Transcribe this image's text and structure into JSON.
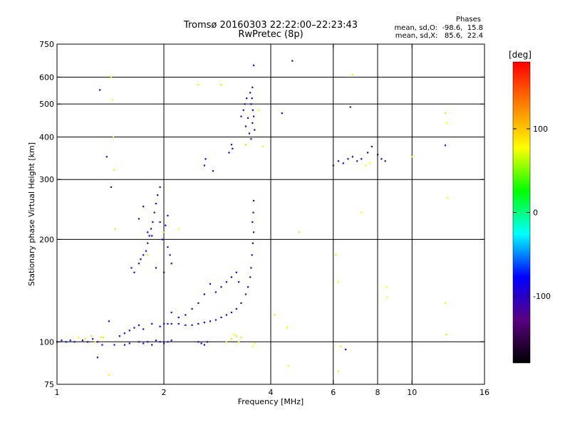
{
  "chart_data": {
    "type": "scatter",
    "title": "Tromsø 20160303 22:22:00–22:23:43",
    "subtitle": "RwPretec (8p)",
    "xlabel": "Frequency [MHz]",
    "ylabel": "Stationary phase Virtual Height [km]",
    "x_scale": "log",
    "y_scale": "log",
    "xlim": [
      1,
      16
    ],
    "ylim": [
      75,
      750
    ],
    "x_ticks": [
      1,
      2,
      4,
      6,
      8,
      10,
      16
    ],
    "y_ticks": [
      75,
      100,
      200,
      300,
      400,
      500,
      600,
      750
    ],
    "x_gridlines": [
      2,
      4,
      6,
      8,
      10
    ],
    "y_gridlines": [
      100,
      200,
      300,
      400,
      500,
      600
    ],
    "grid": true,
    "phase_stats": {
      "heading": "Phases",
      "line_o": "mean, sd,O:  -98.6,  15.8",
      "line_x": "mean, sd,X:   85.6,  22.4"
    },
    "colorbar": {
      "label": "[deg]",
      "range": [
        -180,
        180
      ],
      "ticks": [
        100,
        0,
        -100
      ],
      "tick_labels": [
        "100",
        "0",
        "-100"
      ],
      "colors": [
        "#000000",
        "#5a0080",
        "#0000ff",
        "#00ffff",
        "#00ff00",
        "#ffff00",
        "#ff8000",
        "#ff0000"
      ]
    },
    "series": [
      {
        "mode": "O",
        "points": [
          [
            1.0,
            100,
            -95
          ],
          [
            1.03,
            101,
            -100
          ],
          [
            1.06,
            100,
            -90
          ],
          [
            1.09,
            101,
            -85
          ],
          [
            1.12,
            100,
            -100
          ],
          [
            1.18,
            101,
            -95
          ],
          [
            1.22,
            100,
            -100
          ],
          [
            1.26,
            102,
            -90
          ],
          [
            1.3,
            100,
            -100
          ],
          [
            1.34,
            98,
            -100
          ],
          [
            1.45,
            98,
            -100
          ],
          [
            1.55,
            98,
            -95
          ],
          [
            1.6,
            99,
            -100
          ],
          [
            1.7,
            100,
            -95
          ],
          [
            1.75,
            99,
            -100
          ],
          [
            1.8,
            100,
            -90
          ],
          [
            1.85,
            98,
            -100
          ],
          [
            1.9,
            101,
            -95
          ],
          [
            1.95,
            100,
            -100
          ],
          [
            2.0,
            99,
            -95
          ],
          [
            2.05,
            100,
            -100
          ],
          [
            2.1,
            101,
            -90
          ],
          [
            2.5,
            100,
            -95
          ],
          [
            2.55,
            99,
            -100
          ],
          [
            2.6,
            98,
            -95
          ],
          [
            2.65,
            100,
            -100
          ],
          [
            1.5,
            104,
            -95
          ],
          [
            1.55,
            106,
            -100
          ],
          [
            1.6,
            108,
            -90
          ],
          [
            1.65,
            110,
            -95
          ],
          [
            1.7,
            112,
            -100
          ],
          [
            1.75,
            109,
            -100
          ],
          [
            1.85,
            113,
            -95
          ],
          [
            1.95,
            111,
            -100
          ],
          [
            2.0,
            113,
            -95
          ],
          [
            2.05,
            113,
            -90
          ],
          [
            2.1,
            113,
            -100
          ],
          [
            2.2,
            113,
            -95
          ],
          [
            2.3,
            112,
            -100
          ],
          [
            2.4,
            112,
            -95
          ],
          [
            2.5,
            113,
            -100
          ],
          [
            2.6,
            114,
            -95
          ],
          [
            2.7,
            115,
            -90
          ],
          [
            2.8,
            116,
            -100
          ],
          [
            2.9,
            118,
            -95
          ],
          [
            3.0,
            120,
            -100
          ],
          [
            3.1,
            122,
            -95
          ],
          [
            3.2,
            125,
            -90
          ],
          [
            3.3,
            130,
            -95
          ],
          [
            3.4,
            138,
            -100
          ],
          [
            3.45,
            145,
            -95
          ],
          [
            3.5,
            155,
            -90
          ],
          [
            3.52,
            165,
            -100
          ],
          [
            3.54,
            180,
            -95
          ],
          [
            3.56,
            195,
            -100
          ],
          [
            3.58,
            210,
            -95
          ],
          [
            3.55,
            225,
            -90
          ],
          [
            3.57,
            240,
            -100
          ],
          [
            3.58,
            260,
            -95
          ],
          [
            3.0,
            150,
            -100
          ],
          [
            3.1,
            155,
            -95
          ],
          [
            3.2,
            160,
            -90
          ],
          [
            3.25,
            150,
            -100
          ],
          [
            2.9,
            145,
            -95
          ],
          [
            2.8,
            140,
            -100
          ],
          [
            2.7,
            148,
            -95
          ],
          [
            2.6,
            138,
            -90
          ],
          [
            2.5,
            130,
            -95
          ],
          [
            2.4,
            125,
            -100
          ],
          [
            2.3,
            120,
            -95
          ],
          [
            2.2,
            118,
            -90
          ],
          [
            2.1,
            122,
            -100
          ],
          [
            1.62,
            165,
            -100
          ],
          [
            1.65,
            160,
            -95
          ],
          [
            1.7,
            170,
            -90
          ],
          [
            1.72,
            175,
            -100
          ],
          [
            1.75,
            180,
            -95
          ],
          [
            1.78,
            185,
            -100
          ],
          [
            1.8,
            195,
            -95
          ],
          [
            1.82,
            205,
            -90
          ],
          [
            1.84,
            215,
            -100
          ],
          [
            1.86,
            225,
            -95
          ],
          [
            1.88,
            240,
            -100
          ],
          [
            1.9,
            255,
            -95
          ],
          [
            1.92,
            270,
            -90
          ],
          [
            1.95,
            285,
            -100
          ],
          [
            1.98,
            200,
            -95
          ],
          [
            2.0,
            210,
            -100
          ],
          [
            2.02,
            220,
            -95
          ],
          [
            2.05,
            190,
            -90
          ],
          [
            2.08,
            180,
            -100
          ],
          [
            2.1,
            170,
            -95
          ],
          [
            2.0,
            160,
            -100
          ],
          [
            1.9,
            165,
            -95
          ],
          [
            1.8,
            210,
            -90
          ],
          [
            1.7,
            230,
            -100
          ],
          [
            1.75,
            250,
            -95
          ],
          [
            1.85,
            205,
            -100
          ],
          [
            1.95,
            225,
            -95
          ],
          [
            2.05,
            235,
            -100
          ],
          [
            3.6,
            420,
            -100
          ],
          [
            3.55,
            440,
            -95
          ],
          [
            3.58,
            460,
            -90
          ],
          [
            3.56,
            480,
            -100
          ],
          [
            3.52,
            500,
            -95
          ],
          [
            3.54,
            520,
            -100
          ],
          [
            3.5,
            540,
            -95
          ],
          [
            3.45,
            455,
            -90
          ],
          [
            3.4,
            430,
            -100
          ],
          [
            3.48,
            410,
            -95
          ],
          [
            3.52,
            395,
            -100
          ],
          [
            3.3,
            460,
            -95
          ],
          [
            3.35,
            480,
            -90
          ],
          [
            3.38,
            500,
            -100
          ],
          [
            3.42,
            520,
            -95
          ],
          [
            3.55,
            560,
            -100
          ],
          [
            3.58,
            650,
            -95
          ],
          [
            3.1,
            380,
            -100
          ],
          [
            3.05,
            360,
            -95
          ],
          [
            3.12,
            370,
            -90
          ],
          [
            2.6,
            330,
            -100
          ],
          [
            2.62,
            345,
            -95
          ],
          [
            2.75,
            318,
            -90
          ],
          [
            4.6,
            670,
            -100
          ],
          [
            4.3,
            470,
            -95
          ],
          [
            6.0,
            330,
            -100
          ],
          [
            6.2,
            340,
            -95
          ],
          [
            6.4,
            335,
            -90
          ],
          [
            6.6,
            345,
            -100
          ],
          [
            6.8,
            350,
            -95
          ],
          [
            7.0,
            340,
            -100
          ],
          [
            7.2,
            345,
            -95
          ],
          [
            7.5,
            360,
            -90
          ],
          [
            7.7,
            375,
            -100
          ],
          [
            8.0,
            355,
            -95
          ],
          [
            8.2,
            345,
            -100
          ],
          [
            8.4,
            340,
            -95
          ],
          [
            12.4,
            378,
            -100
          ],
          [
            1.4,
            115,
            -95
          ],
          [
            1.3,
            90,
            -100
          ],
          [
            1.32,
            550,
            -95
          ],
          [
            1.38,
            350,
            -90
          ],
          [
            1.42,
            285,
            -100
          ],
          [
            6.5,
            95,
            -95
          ],
          [
            6.7,
            490,
            -100
          ]
        ]
      },
      {
        "mode": "X",
        "points": [
          [
            1.15,
            103,
            85
          ],
          [
            1.2,
            102,
            90
          ],
          [
            1.25,
            104,
            95
          ],
          [
            1.28,
            100,
            80
          ],
          [
            1.33,
            103,
            85
          ],
          [
            3.1,
            102,
            90
          ],
          [
            3.15,
            105,
            85
          ],
          [
            3.2,
            104,
            95
          ],
          [
            3.25,
            100,
            80
          ],
          [
            3.3,
            103,
            90
          ],
          [
            3.6,
            99,
            85
          ],
          [
            3.55,
            97,
            75
          ],
          [
            1.42,
            600,
            90
          ],
          [
            1.43,
            515,
            80
          ],
          [
            1.44,
            400,
            95
          ],
          [
            1.45,
            320,
            85
          ],
          [
            1.46,
            215,
            90
          ],
          [
            2.5,
            570,
            85
          ],
          [
            2.9,
            570,
            90
          ],
          [
            3.7,
            480,
            85
          ],
          [
            3.8,
            375,
            80
          ],
          [
            4.1,
            120,
            90
          ],
          [
            4.45,
            110,
            85
          ],
          [
            4.48,
            85,
            80
          ],
          [
            4.8,
            210,
            90
          ],
          [
            6.1,
            180,
            85
          ],
          [
            6.2,
            150,
            80
          ],
          [
            6.3,
            97,
            90
          ],
          [
            6.2,
            82,
            85
          ],
          [
            7.2,
            240,
            80
          ],
          [
            8.5,
            145,
            75
          ],
          [
            8.5,
            135,
            80
          ],
          [
            10.0,
            350,
            85
          ],
          [
            12.4,
            470,
            90
          ],
          [
            12.5,
            440,
            80
          ],
          [
            12.6,
            265,
            75
          ],
          [
            12.4,
            130,
            85
          ],
          [
            12.5,
            105,
            90
          ],
          [
            7.4,
            330,
            85
          ],
          [
            7.6,
            335,
            80
          ],
          [
            6.8,
            610,
            85
          ],
          [
            2.2,
            215,
            80
          ],
          [
            2.0,
            210,
            85
          ],
          [
            1.8,
            180,
            90
          ],
          [
            1.4,
            80,
            85
          ],
          [
            1.35,
            103,
            90
          ],
          [
            3.0,
            100,
            90
          ],
          [
            3.4,
            380,
            95
          ]
        ]
      }
    ]
  }
}
